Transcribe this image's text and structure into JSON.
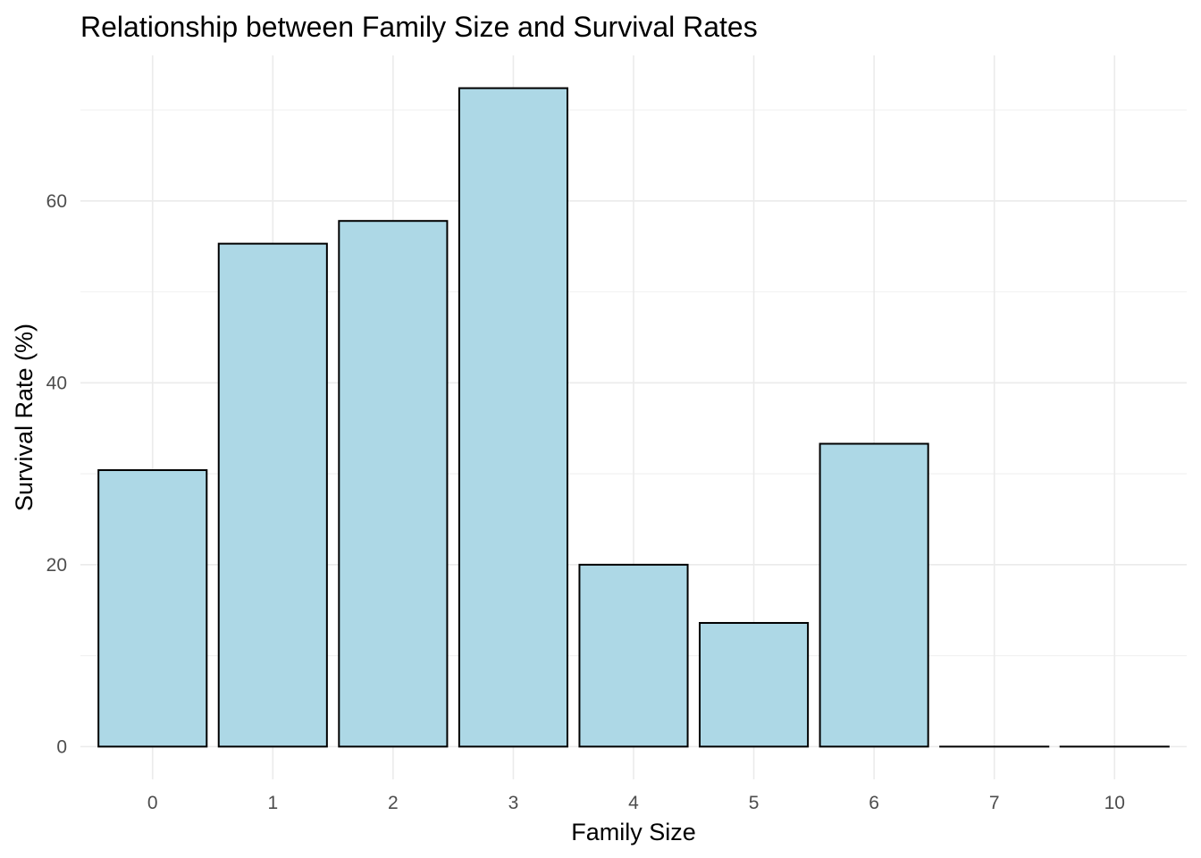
{
  "chart_data": {
    "type": "bar",
    "title": "Relationship between Family Size and Survival Rates",
    "xlabel": "Family Size",
    "ylabel": "Survival Rate (%)",
    "categories": [
      "0",
      "1",
      "2",
      "3",
      "4",
      "5",
      "6",
      "7",
      "10"
    ],
    "values": [
      30.4,
      55.3,
      57.8,
      72.4,
      20.0,
      13.6,
      33.3,
      0,
      0
    ],
    "ylim": [
      -3.6,
      76.0
    ],
    "yticks": [
      0,
      20,
      40,
      60
    ],
    "ytick_labels": [
      "0",
      "20",
      "40",
      "60"
    ],
    "grid": true,
    "legend": "none",
    "colors": {
      "bar_fill": "#add8e6",
      "bar_outline": "#000000",
      "grid_major": "#ebebeb",
      "grid_minor": "#f2f2f2",
      "tick_text": "#4d4d4d"
    }
  }
}
